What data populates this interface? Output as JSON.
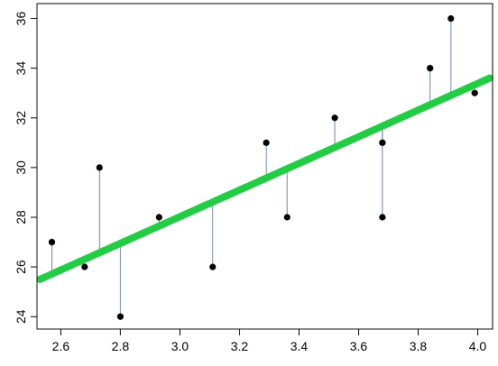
{
  "chart_data": {
    "type": "scatter",
    "title": "",
    "xlabel": "",
    "ylabel": "",
    "xlim": [
      2.52,
      4.05
    ],
    "ylim": [
      23.5,
      36.6
    ],
    "grid": false,
    "x_ticks": [
      2.6,
      2.8,
      3.0,
      3.2,
      3.4,
      3.6,
      3.8,
      4.0
    ],
    "x_tick_labels": [
      "2.6",
      "2.8",
      "3.0",
      "3.2",
      "3.4",
      "3.6",
      "3.8",
      "4.0"
    ],
    "y_ticks": [
      24,
      26,
      28,
      30,
      32,
      34,
      36
    ],
    "y_tick_labels": [
      "24",
      "26",
      "28",
      "30",
      "32",
      "34",
      "36"
    ],
    "points": [
      {
        "x": 2.57,
        "y": 27
      },
      {
        "x": 2.68,
        "y": 26
      },
      {
        "x": 2.73,
        "y": 30
      },
      {
        "x": 2.8,
        "y": 24
      },
      {
        "x": 2.93,
        "y": 28
      },
      {
        "x": 3.11,
        "y": 26
      },
      {
        "x": 3.29,
        "y": 31
      },
      {
        "x": 3.36,
        "y": 28
      },
      {
        "x": 3.52,
        "y": 32
      },
      {
        "x": 3.68,
        "y": 31
      },
      {
        "x": 3.68,
        "y": 28
      },
      {
        "x": 3.84,
        "y": 34
      },
      {
        "x": 3.91,
        "y": 36
      },
      {
        "x": 3.99,
        "y": 33
      }
    ],
    "fit_line": {
      "x": [
        2.53,
        4.04
      ],
      "y": [
        25.5,
        33.6
      ]
    },
    "residuals": true,
    "colors": {
      "points": "#000000",
      "fit_line": "#22cc44",
      "residuals": "#6a85b8",
      "axes": "#000000"
    }
  }
}
